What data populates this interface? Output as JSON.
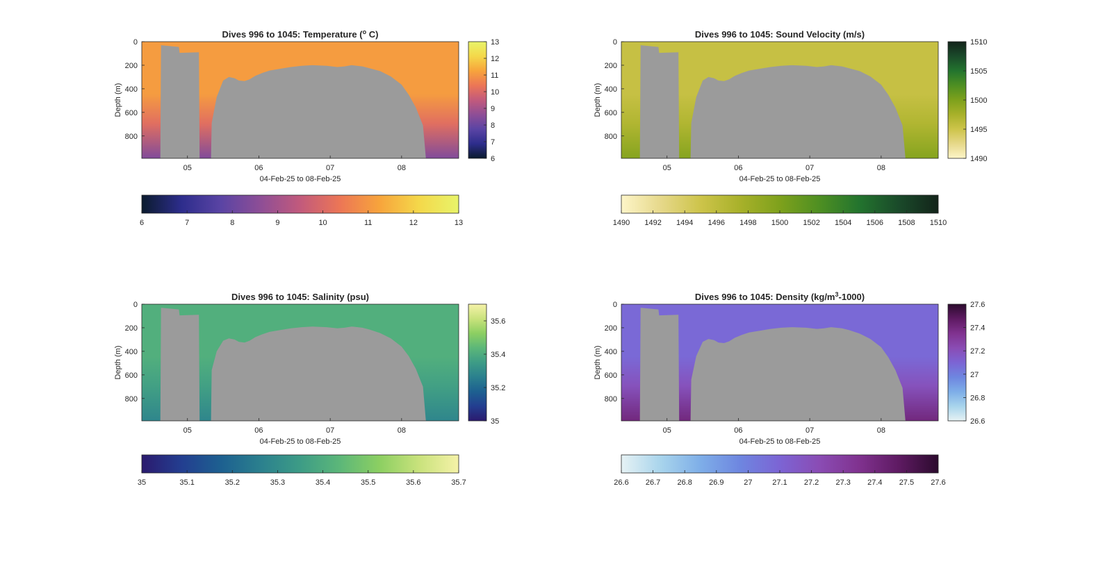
{
  "chart_data": [
    {
      "type": "heatmap",
      "title": "Dives 996 to 1045: Temperature (",
      "title_super": "o",
      "title_tail": " C)",
      "xlabel": "04-Feb-25 to 08-Feb-25",
      "ylabel": "Depth (m)",
      "x_ticks": [
        "05",
        "06",
        "07",
        "08"
      ],
      "x_tick_values": [
        5,
        6,
        7,
        8
      ],
      "xlim": [
        4.36,
        8.8
      ],
      "ylim": [
        990,
        0
      ],
      "y_ticks": [
        0,
        200,
        400,
        600,
        800
      ],
      "clim": [
        6,
        13
      ],
      "colorbar_side_ticks": [
        "6",
        "7",
        "8",
        "9",
        "10",
        "11",
        "12",
        "13"
      ],
      "colorbar_bottom_ticks": [
        "6",
        "7",
        "8",
        "9",
        "10",
        "11",
        "12",
        "13"
      ],
      "colormap": [
        "#0b1b2e",
        "#2d2d8c",
        "#5a44a4",
        "#8e4e96",
        "#c25a7c",
        "#ec7656",
        "#f7a43c",
        "#f4d84a",
        "#e8f46a"
      ],
      "surface_value": 11.1,
      "deep_value": 8.4,
      "mask_color": "#9b9b9b",
      "bottom_depth_m": [
        [
          4.36,
          990
        ],
        [
          4.62,
          990
        ],
        [
          4.63,
          30
        ],
        [
          4.88,
          45
        ],
        [
          4.89,
          95
        ],
        [
          5.16,
          90
        ],
        [
          5.17,
          990
        ],
        [
          5.33,
          990
        ],
        [
          5.34,
          690
        ],
        [
          5.41,
          470
        ],
        [
          5.5,
          330
        ],
        [
          5.58,
          300
        ],
        [
          5.66,
          310
        ],
        [
          5.72,
          330
        ],
        [
          5.8,
          335
        ],
        [
          5.87,
          320
        ],
        [
          5.95,
          290
        ],
        [
          6.05,
          265
        ],
        [
          6.15,
          245
        ],
        [
          6.3,
          230
        ],
        [
          6.45,
          215
        ],
        [
          6.6,
          205
        ],
        [
          6.75,
          200
        ],
        [
          6.95,
          205
        ],
        [
          7.1,
          215
        ],
        [
          7.2,
          210
        ],
        [
          7.3,
          200
        ],
        [
          7.45,
          210
        ],
        [
          7.55,
          225
        ],
        [
          7.7,
          250
        ],
        [
          7.85,
          295
        ],
        [
          8.0,
          365
        ],
        [
          8.1,
          450
        ],
        [
          8.2,
          560
        ],
        [
          8.3,
          710
        ],
        [
          8.34,
          990
        ],
        [
          8.8,
          990
        ]
      ]
    },
    {
      "type": "heatmap",
      "title": "Dives 996 to 1045: Sound Velocity (m/s)",
      "title_super": "",
      "title_tail": "",
      "xlabel": "04-Feb-25 to 08-Feb-25",
      "ylabel": "Depth (m)",
      "x_ticks": [
        "05",
        "06",
        "07",
        "08"
      ],
      "x_tick_values": [
        5,
        6,
        7,
        8
      ],
      "xlim": [
        4.36,
        8.8
      ],
      "ylim": [
        990,
        0
      ],
      "y_ticks": [
        0,
        200,
        400,
        600,
        800
      ],
      "clim": [
        1490,
        1510
      ],
      "colorbar_side_ticks": [
        "1490",
        "1495",
        "1500",
        "1505",
        "1510"
      ],
      "colorbar_side_values": [
        1490,
        1495,
        1500,
        1505,
        1510
      ],
      "colorbar_bottom_ticks": [
        "1490",
        "1492",
        "1494",
        "1496",
        "1498",
        "1500",
        "1502",
        "1504",
        "1506",
        "1508",
        "1510"
      ],
      "colormap": [
        "#fdf5c8",
        "#e6d88a",
        "#cdc44a",
        "#a8b12a",
        "#7ea11c",
        "#4e8f22",
        "#23742e",
        "#1a4a2a",
        "#13241a"
      ],
      "surface_value": 1495.5,
      "deep_value": 1499.5,
      "mask_color": "#9b9b9b",
      "bottom_depth_m": [
        [
          4.36,
          990
        ],
        [
          4.62,
          990
        ],
        [
          4.63,
          30
        ],
        [
          4.88,
          45
        ],
        [
          4.89,
          95
        ],
        [
          5.16,
          90
        ],
        [
          5.17,
          990
        ],
        [
          5.33,
          990
        ],
        [
          5.34,
          690
        ],
        [
          5.41,
          470
        ],
        [
          5.5,
          330
        ],
        [
          5.58,
          300
        ],
        [
          5.66,
          310
        ],
        [
          5.72,
          330
        ],
        [
          5.8,
          335
        ],
        [
          5.87,
          320
        ],
        [
          5.95,
          290
        ],
        [
          6.05,
          265
        ],
        [
          6.15,
          245
        ],
        [
          6.3,
          230
        ],
        [
          6.45,
          215
        ],
        [
          6.6,
          205
        ],
        [
          6.75,
          200
        ],
        [
          6.95,
          205
        ],
        [
          7.1,
          215
        ],
        [
          7.2,
          210
        ],
        [
          7.3,
          200
        ],
        [
          7.45,
          210
        ],
        [
          7.55,
          225
        ],
        [
          7.7,
          250
        ],
        [
          7.85,
          295
        ],
        [
          8.0,
          365
        ],
        [
          8.1,
          450
        ],
        [
          8.2,
          560
        ],
        [
          8.3,
          710
        ],
        [
          8.34,
          990
        ],
        [
          8.8,
          990
        ]
      ]
    },
    {
      "type": "heatmap",
      "title": "Dives 996 to 1045: Salinity (psu)",
      "title_super": "",
      "title_tail": "",
      "xlabel": "04-Feb-25 to 08-Feb-25",
      "ylabel": "Depth (m)",
      "x_ticks": [
        "05",
        "06",
        "07",
        "08"
      ],
      "x_tick_values": [
        5,
        6,
        7,
        8
      ],
      "xlim": [
        4.36,
        8.8
      ],
      "ylim": [
        990,
        0
      ],
      "y_ticks": [
        0,
        200,
        400,
        600,
        800
      ],
      "clim": [
        35,
        35.7
      ],
      "colorbar_side_ticks": [
        "35",
        "35.2",
        "35.4",
        "35.6"
      ],
      "colorbar_side_values": [
        35,
        35.2,
        35.4,
        35.6
      ],
      "colorbar_bottom_ticks": [
        "35",
        "35.1",
        "35.2",
        "35.3",
        "35.4",
        "35.5",
        "35.6",
        "35.7"
      ],
      "colormap": [
        "#2b1a6e",
        "#233e90",
        "#1d6090",
        "#2b808e",
        "#3d9c86",
        "#5cb779",
        "#8ccf62",
        "#c9e27c",
        "#f5f2a8"
      ],
      "surface_value": 35.41,
      "deep_value": 35.28,
      "mask_color": "#9b9b9b",
      "bottom_depth_m": [
        [
          4.36,
          990
        ],
        [
          4.62,
          990
        ],
        [
          4.63,
          30
        ],
        [
          4.88,
          45
        ],
        [
          4.89,
          95
        ],
        [
          5.16,
          90
        ],
        [
          5.17,
          990
        ],
        [
          5.33,
          990
        ],
        [
          5.34,
          560
        ],
        [
          5.41,
          400
        ],
        [
          5.5,
          310
        ],
        [
          5.58,
          290
        ],
        [
          5.66,
          300
        ],
        [
          5.72,
          320
        ],
        [
          5.8,
          325
        ],
        [
          5.87,
          310
        ],
        [
          5.95,
          280
        ],
        [
          6.05,
          255
        ],
        [
          6.15,
          235
        ],
        [
          6.3,
          220
        ],
        [
          6.45,
          205
        ],
        [
          6.6,
          195
        ],
        [
          6.75,
          190
        ],
        [
          6.95,
          195
        ],
        [
          7.1,
          205
        ],
        [
          7.2,
          200
        ],
        [
          7.3,
          190
        ],
        [
          7.45,
          200
        ],
        [
          7.55,
          215
        ],
        [
          7.7,
          245
        ],
        [
          7.85,
          290
        ],
        [
          8.0,
          360
        ],
        [
          8.1,
          440
        ],
        [
          8.2,
          550
        ],
        [
          8.3,
          700
        ],
        [
          8.34,
          990
        ],
        [
          8.8,
          990
        ]
      ]
    },
    {
      "type": "heatmap",
      "title": "Dives 996 to 1045: Density (kg/m",
      "title_super": "3",
      "title_tail": "-1000)",
      "xlabel": "04-Feb-25 to 08-Feb-25",
      "ylabel": "Depth (m)",
      "x_ticks": [
        "05",
        "06",
        "07",
        "08"
      ],
      "x_tick_values": [
        5,
        6,
        7,
        8
      ],
      "xlim": [
        4.36,
        8.8
      ],
      "ylim": [
        990,
        0
      ],
      "y_ticks": [
        0,
        200,
        400,
        600,
        800
      ],
      "clim": [
        26.6,
        27.6
      ],
      "colorbar_side_ticks": [
        "26.6",
        "26.8",
        "27",
        "27.2",
        "27.4",
        "27.6"
      ],
      "colorbar_side_values": [
        26.6,
        26.8,
        27,
        27.2,
        27.4,
        27.6
      ],
      "colorbar_bottom_ticks": [
        "26.6",
        "26.7",
        "26.8",
        "26.9",
        "27",
        "27.1",
        "27.2",
        "27.3",
        "27.4",
        "27.5",
        "27.6"
      ],
      "colormap": [
        "#e6f2f4",
        "#a8d4ec",
        "#7eaee8",
        "#6e86e0",
        "#7c64d4",
        "#8a4cb4",
        "#80328f",
        "#5e1a62",
        "#2c0b2e"
      ],
      "surface_value": 27.08,
      "deep_value": 27.4,
      "mask_color": "#9b9b9b",
      "bottom_depth_m": [
        [
          4.36,
          990
        ],
        [
          4.62,
          990
        ],
        [
          4.63,
          30
        ],
        [
          4.88,
          45
        ],
        [
          4.89,
          95
        ],
        [
          5.16,
          90
        ],
        [
          5.17,
          990
        ],
        [
          5.33,
          990
        ],
        [
          5.34,
          640
        ],
        [
          5.41,
          440
        ],
        [
          5.5,
          320
        ],
        [
          5.58,
          295
        ],
        [
          5.66,
          305
        ],
        [
          5.72,
          325
        ],
        [
          5.8,
          330
        ],
        [
          5.87,
          315
        ],
        [
          5.95,
          285
        ],
        [
          6.05,
          260
        ],
        [
          6.15,
          240
        ],
        [
          6.3,
          225
        ],
        [
          6.45,
          210
        ],
        [
          6.6,
          200
        ],
        [
          6.75,
          195
        ],
        [
          6.95,
          200
        ],
        [
          7.1,
          210
        ],
        [
          7.2,
          205
        ],
        [
          7.3,
          195
        ],
        [
          7.45,
          205
        ],
        [
          7.55,
          220
        ],
        [
          7.7,
          250
        ],
        [
          7.85,
          295
        ],
        [
          8.0,
          365
        ],
        [
          8.1,
          450
        ],
        [
          8.2,
          560
        ],
        [
          8.3,
          710
        ],
        [
          8.34,
          990
        ],
        [
          8.8,
          990
        ]
      ]
    }
  ]
}
